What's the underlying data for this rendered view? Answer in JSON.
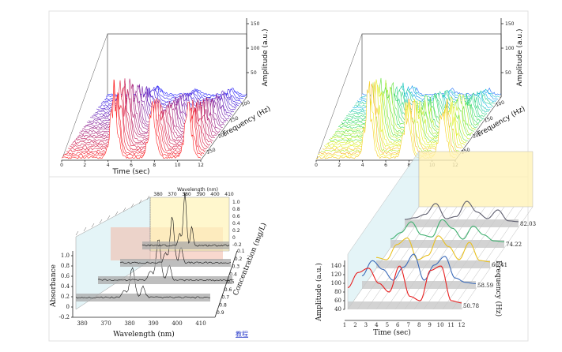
{
  "link_text": "教程",
  "chart_data": [
    {
      "type": "line",
      "panel": "waterfall-red-blue",
      "xlabel": "Time (sec)",
      "ylabel": "Frequency (Hz)",
      "zlabel": "Amplitude (a.u.)",
      "x_ticks": [
        "0",
        "2",
        "4",
        "6",
        "8",
        "10",
        "12"
      ],
      "y_ticks": [
        "100",
        "150",
        "200",
        "250"
      ],
      "z_ticks": [
        "50",
        "100",
        "150"
      ],
      "xlim": [
        0,
        12
      ],
      "zlim": [
        0,
        160
      ],
      "peak_times": [
        4.5,
        7.8,
        10.9
      ],
      "peak_heights": [
        150,
        110,
        110
      ],
      "n_traces": 30,
      "colormap": [
        "#2020ff",
        "#ff2020"
      ]
    },
    {
      "type": "line",
      "panel": "waterfall-colormap",
      "xlabel": "",
      "ylabel": "Frequency (Hz)",
      "zlabel": "Amplitude (a.u.)",
      "x_ticks": [
        "0",
        "2",
        "4",
        "6",
        "8",
        "10",
        "12"
      ],
      "y_ticks": [
        "100",
        "150",
        "200",
        "250"
      ],
      "z_ticks": [
        "50",
        "100",
        "150"
      ],
      "xlim": [
        0,
        12
      ],
      "zlim": [
        0,
        160
      ],
      "peak_times": [
        4.5,
        7.8,
        10.9
      ],
      "peak_heights": [
        150,
        110,
        110
      ],
      "n_traces": 30,
      "colormap": [
        "#7a2a8a",
        "#2060ff",
        "#10c0e0",
        "#40e040",
        "#f0f020",
        "#ff9020",
        "#ff2020"
      ]
    },
    {
      "type": "line",
      "panel": "absorbance-3d",
      "xlabel": "Wavelength (nm)",
      "top_xlabel": "Wavelength (nm)",
      "ylabel": "Absorbance",
      "zlabel": "Concentration (mg/L)",
      "x_ticks": [
        "380",
        "370",
        "380",
        "390",
        "400",
        "410"
      ],
      "top_x_ticks": [
        "380",
        "370",
        "380",
        "390",
        "400",
        "410"
      ],
      "y_ticks": [
        "-0.2",
        "0",
        "0.2",
        "0.4",
        "0.6",
        "0.8",
        "1.0"
      ],
      "right_ticks": [
        "1.0",
        "0.8",
        "0.6",
        "0.4",
        "0.2",
        "0",
        "-0.2"
      ],
      "depth_ticks": [
        "0.9",
        "0.8",
        "0.7",
        "0.6",
        "0.5",
        "0.4",
        "0.3",
        "0.2",
        "0.1"
      ],
      "series": [
        {
          "depth": 0,
          "peak_at": 0.42,
          "peak_height": 0.55
        },
        {
          "depth": 1,
          "peak_at": 0.45,
          "peak_height": 0.75
        },
        {
          "depth": 2,
          "peak_at": 0.47,
          "peak_height": 0.85
        },
        {
          "depth": 3,
          "peak_at": 0.49,
          "peak_height": 0.95
        }
      ]
    },
    {
      "type": "line",
      "panel": "stacked-profiles",
      "xlabel": "Time (sec)",
      "ylabel": "Amplitude (a.u.)",
      "zlabel": "Frequency (Hz)",
      "x_ticks": [
        "1",
        "2",
        "3",
        "4",
        "5",
        "6",
        "7",
        "8",
        "9",
        "10",
        "11",
        "12"
      ],
      "y_ticks": [
        "40",
        "60",
        "80",
        "100",
        "120",
        "140"
      ],
      "ylim": [
        40,
        150
      ],
      "series": [
        {
          "name": "50.78",
          "color": "#e82020",
          "values": [
            90,
            125,
            135,
            100,
            80,
            140,
            70,
            60,
            130,
            140,
            60,
            55
          ]
        },
        {
          "name": "58.59",
          "color": "#3a6ab8",
          "values": [
            70,
            105,
            85,
            60,
            90,
            120,
            60,
            95,
            115,
            65,
            55,
            52
          ]
        },
        {
          "name": "66.41",
          "color": "#e8c020",
          "values": [
            65,
            60,
            95,
            110,
            60,
            70,
            115,
            90,
            60,
            100,
            58,
            55
          ]
        },
        {
          "name": "74.22",
          "color": "#40b070",
          "values": [
            60,
            75,
            100,
            70,
            65,
            105,
            85,
            60,
            90,
            70,
            56,
            54
          ]
        },
        {
          "name": "82.03",
          "color": "#606070",
          "values": [
            58,
            62,
            70,
            95,
            60,
            65,
            100,
            75,
            60,
            80,
            55,
            53
          ]
        }
      ]
    }
  ]
}
